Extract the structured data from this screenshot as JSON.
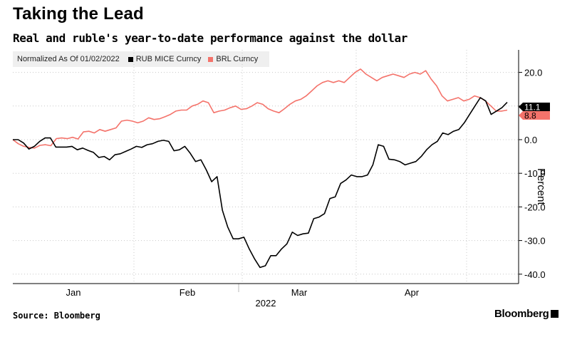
{
  "header": {
    "title": "Taking the Lead",
    "subtitle": "Real and ruble's year-to-date performance against the dollar"
  },
  "legend": {
    "note": "Normalized As Of 01/02/2022",
    "items": [
      {
        "label": "RUB MICE Curncy",
        "color": "#000000"
      },
      {
        "label": "BRL Curncy",
        "color": "#f4736b"
      }
    ]
  },
  "footer": {
    "source": "Source: Bloomberg",
    "brand": "Bloomberg"
  },
  "chart_data": {
    "type": "line",
    "xlabel": "2022",
    "ylabel": "Percent",
    "ylim": [
      -43,
      27
    ],
    "yticks": [
      20,
      10,
      0,
      -10,
      -20,
      -30,
      -40
    ],
    "ytick_labels": [
      "20.0",
      "10.0",
      "0.0",
      "-10.0",
      "-20.0",
      "-30.0",
      "-40.0"
    ],
    "xtick_labels": [
      "Jan",
      "Feb",
      "Mar",
      "Apr"
    ],
    "year_label": "2022",
    "grid": true,
    "legend_position": "top-left",
    "end_labels": [
      {
        "series": "RUB MICE Curncy",
        "text": "11.1"
      },
      {
        "series": "BRL Curncy",
        "text": "8.8"
      }
    ],
    "series": [
      {
        "name": "RUB MICE Curncy",
        "color": "#000000",
        "values": [
          0,
          0,
          -1,
          -2.8,
          -2,
          -0.5,
          0.5,
          0.5,
          -2.2,
          -2.2,
          -2.2,
          -2,
          -3,
          -2.5,
          -3.2,
          -3.8,
          -5.3,
          -5,
          -6,
          -4.5,
          -4.2,
          -3.5,
          -2.8,
          -2,
          -2.3,
          -1.5,
          -1.2,
          -0.5,
          -0.2,
          -0.5,
          -3.3,
          -3,
          -2,
          -4,
          -6.5,
          -6,
          -9,
          -12.5,
          -11,
          -21,
          -26,
          -29.5,
          -29.5,
          -29,
          -32.5,
          -35.5,
          -38,
          -37.5,
          -34.5,
          -34.5,
          -32.5,
          -31,
          -27.5,
          -28.5,
          -28,
          -27.8,
          -23.5,
          -23,
          -22,
          -17.5,
          -17,
          -13,
          -12,
          -10.5,
          -11,
          -11,
          -10.5,
          -7.5,
          -1.5,
          -2,
          -5.8,
          -6,
          -6.5,
          -7.5,
          -7,
          -6.5,
          -5,
          -3,
          -1.5,
          -0.5,
          2,
          1.5,
          2.5,
          3,
          5,
          7.5,
          10,
          12.5,
          11.5,
          7.5,
          8.5,
          9.5,
          11.1
        ]
      },
      {
        "name": "BRL Curncy",
        "color": "#f4736b",
        "values": [
          0,
          -1.2,
          -2,
          -2.3,
          -2.5,
          -1.7,
          -1.5,
          -1.8,
          0.3,
          0.5,
          0.3,
          0.7,
          0.2,
          2.3,
          2.5,
          2,
          3,
          2.5,
          3,
          3.5,
          5.5,
          5.8,
          5.5,
          5,
          5.5,
          6.5,
          6,
          6.2,
          6.8,
          7.5,
          8.5,
          8.8,
          8.8,
          10,
          10.5,
          11.5,
          11,
          8,
          8.5,
          8.8,
          9.5,
          10,
          9,
          9.2,
          10,
          11,
          10.5,
          9.2,
          8.5,
          8,
          9.2,
          10.5,
          11.5,
          12,
          13,
          14.5,
          16,
          17,
          17.5,
          17,
          17.5,
          17,
          18.5,
          20,
          21,
          19.5,
          18.5,
          17.5,
          18.5,
          19,
          19.5,
          19,
          18.5,
          19.5,
          20,
          19.5,
          20.5,
          18,
          16,
          13,
          11.5,
          12,
          12.5,
          11.5,
          12,
          13,
          12.5,
          11.5,
          10,
          8.5,
          8.5,
          8.8
        ]
      }
    ]
  }
}
